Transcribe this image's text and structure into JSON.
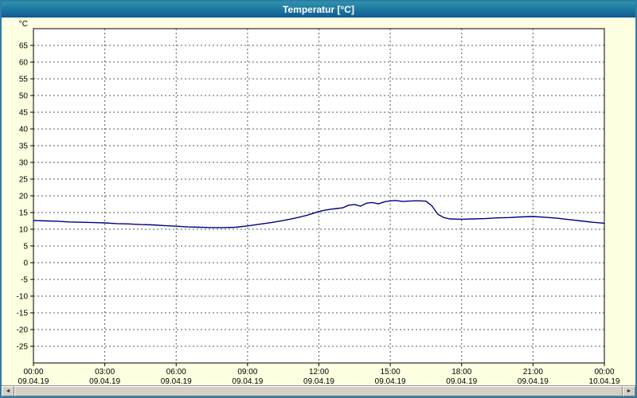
{
  "window": {
    "title": "Temperatur [°C]",
    "titlebar_gradient": [
      "#2D93AC",
      "#0E5A94"
    ],
    "border_color": "#2F7CA8",
    "background": "#FFFFE1"
  },
  "chart_data": {
    "type": "line",
    "title": "Temperatur [°C]",
    "ylabel": "°C",
    "xlabel": "",
    "ylim": [
      -30,
      70
    ],
    "xlim_hours": [
      0,
      24
    ],
    "grid": "dashed",
    "grid_color": "#5A5A5A",
    "plot_bg": "#FFFFFF",
    "axis_color": "#000000",
    "yticks": [
      65,
      60,
      55,
      50,
      45,
      40,
      35,
      30,
      25,
      20,
      15,
      10,
      5,
      0,
      -5,
      -10,
      -15,
      -20,
      -25
    ],
    "xticks": [
      {
        "hour": 0,
        "time": "00:00",
        "date": "09.04.19"
      },
      {
        "hour": 3,
        "time": "03:00",
        "date": "09.04.19"
      },
      {
        "hour": 6,
        "time": "06:00",
        "date": "09.04.19"
      },
      {
        "hour": 9,
        "time": "09:00",
        "date": "09.04.19"
      },
      {
        "hour": 12,
        "time": "12:00",
        "date": "09.04.19"
      },
      {
        "hour": 15,
        "time": "15:00",
        "date": "09.04.19"
      },
      {
        "hour": 18,
        "time": "18:00",
        "date": "09.04.19"
      },
      {
        "hour": 21,
        "time": "21:00",
        "date": "09.04.19"
      },
      {
        "hour": 24,
        "time": "00:00",
        "date": "10.04.19"
      }
    ],
    "series": [
      {
        "name": "Temperatur",
        "color": "#000080",
        "x_hours": [
          0,
          0.5,
          1,
          1.5,
          2,
          2.5,
          3,
          3.5,
          4,
          4.5,
          5,
          5.5,
          6,
          6.5,
          7,
          7.5,
          8,
          8.5,
          9,
          9.5,
          10,
          10.5,
          11,
          11.5,
          12,
          12.25,
          12.5,
          12.75,
          13,
          13.25,
          13.5,
          13.75,
          14,
          14.25,
          14.5,
          14.75,
          15,
          15.25,
          15.5,
          15.75,
          16,
          16.25,
          16.5,
          16.75,
          17,
          17.25,
          17.5,
          18,
          18.5,
          19,
          19.5,
          20,
          20.5,
          21,
          21.5,
          22,
          22.5,
          23,
          23.5,
          24
        ],
        "values": [
          12.6,
          12.5,
          12.4,
          12.2,
          12.1,
          12.0,
          11.9,
          11.7,
          11.6,
          11.4,
          11.3,
          11.1,
          10.9,
          10.7,
          10.6,
          10.5,
          10.5,
          10.6,
          11.0,
          11.5,
          12.0,
          12.6,
          13.3,
          14.2,
          15.3,
          15.7,
          16.0,
          16.2,
          16.4,
          17.2,
          17.4,
          16.9,
          17.8,
          18.0,
          17.6,
          18.2,
          18.5,
          18.6,
          18.3,
          18.4,
          18.5,
          18.5,
          18.4,
          17.0,
          14.5,
          13.5,
          13.1,
          13.0,
          13.1,
          13.2,
          13.4,
          13.5,
          13.7,
          13.8,
          13.6,
          13.3,
          12.9,
          12.5,
          12.1,
          11.8
        ]
      }
    ],
    "legend": "none"
  },
  "scrollbar": {
    "left_arrow": "◄",
    "right_arrow": "►"
  }
}
